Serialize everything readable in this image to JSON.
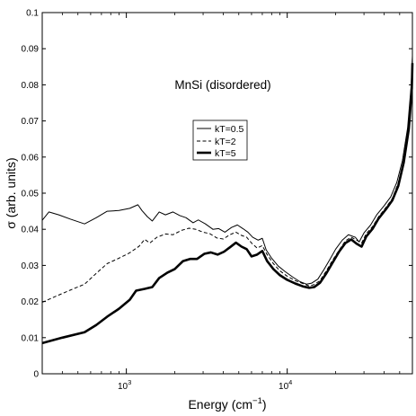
{
  "chart_data": {
    "type": "line",
    "annotation": "MnSi (disordered)",
    "xlabel_main": "Energy (cm",
    "xlabel_exp": "−1",
    "xlabel_close": ")",
    "ylabel": "σ (arb. units)",
    "x_scale": "log",
    "xlim": [
      300,
      60000
    ],
    "ylim": [
      0,
      0.1
    ],
    "grid": false,
    "legend_position": "upper-center",
    "y_ticks": [
      "0",
      "0.01",
      "0.02",
      "0.03",
      "0.04",
      "0.05",
      "0.06",
      "0.07",
      "0.08",
      "0.09",
      "0.1"
    ],
    "x_ticks": [
      {
        "value": 1000,
        "base": "10",
        "exp": "3"
      },
      {
        "value": 10000,
        "base": "10",
        "exp": "4"
      }
    ],
    "series": [
      {
        "name": "kT=0.5",
        "style": "solid-thin",
        "points": [
          [
            300,
            0.0425
          ],
          [
            330,
            0.0448
          ],
          [
            380,
            0.044
          ],
          [
            450,
            0.0428
          ],
          [
            550,
            0.0415
          ],
          [
            650,
            0.0432
          ],
          [
            760,
            0.045
          ],
          [
            900,
            0.0452
          ],
          [
            1050,
            0.0458
          ],
          [
            1180,
            0.0468
          ],
          [
            1250,
            0.0452
          ],
          [
            1350,
            0.0435
          ],
          [
            1450,
            0.0423
          ],
          [
            1600,
            0.0448
          ],
          [
            1750,
            0.044
          ],
          [
            1950,
            0.0448
          ],
          [
            2150,
            0.0438
          ],
          [
            2350,
            0.0432
          ],
          [
            2600,
            0.0418
          ],
          [
            2800,
            0.0426
          ],
          [
            3100,
            0.0415
          ],
          [
            3450,
            0.04
          ],
          [
            3750,
            0.0402
          ],
          [
            4100,
            0.0392
          ],
          [
            4500,
            0.0405
          ],
          [
            4900,
            0.0412
          ],
          [
            5300,
            0.0402
          ],
          [
            5700,
            0.0392
          ],
          [
            6100,
            0.0378
          ],
          [
            6600,
            0.037
          ],
          [
            7000,
            0.0375
          ],
          [
            7400,
            0.0343
          ],
          [
            8000,
            0.032
          ],
          [
            8800,
            0.0298
          ],
          [
            9700,
            0.0283
          ],
          [
            10800,
            0.0268
          ],
          [
            12000,
            0.0255
          ],
          [
            13200,
            0.0248
          ],
          [
            14200,
            0.0251
          ],
          [
            15500,
            0.0262
          ],
          [
            17000,
            0.029
          ],
          [
            18500,
            0.0318
          ],
          [
            20000,
            0.0345
          ],
          [
            22000,
            0.037
          ],
          [
            24000,
            0.0385
          ],
          [
            26500,
            0.0378
          ],
          [
            28000,
            0.0365
          ],
          [
            30000,
            0.039
          ],
          [
            33000,
            0.0412
          ],
          [
            36000,
            0.044
          ],
          [
            40000,
            0.0465
          ],
          [
            44000,
            0.049
          ],
          [
            48000,
            0.053
          ],
          [
            52000,
            0.059
          ],
          [
            56000,
            0.068
          ],
          [
            59000,
            0.08
          ],
          [
            60000,
            0.088
          ]
        ]
      },
      {
        "name": "kT=2",
        "style": "dashed",
        "points": [
          [
            300,
            0.0198
          ],
          [
            380,
            0.0218
          ],
          [
            450,
            0.0232
          ],
          [
            550,
            0.0248
          ],
          [
            650,
            0.0278
          ],
          [
            760,
            0.0305
          ],
          [
            900,
            0.032
          ],
          [
            1050,
            0.0335
          ],
          [
            1200,
            0.0353
          ],
          [
            1300,
            0.0372
          ],
          [
            1400,
            0.0362
          ],
          [
            1550,
            0.0378
          ],
          [
            1750,
            0.0387
          ],
          [
            1950,
            0.0385
          ],
          [
            2200,
            0.0397
          ],
          [
            2450,
            0.0403
          ],
          [
            2700,
            0.04
          ],
          [
            3000,
            0.0392
          ],
          [
            3300,
            0.0388
          ],
          [
            3650,
            0.0376
          ],
          [
            4000,
            0.0373
          ],
          [
            4400,
            0.0385
          ],
          [
            4800,
            0.0392
          ],
          [
            5200,
            0.0383
          ],
          [
            5600,
            0.0378
          ],
          [
            6000,
            0.0362
          ],
          [
            6500,
            0.0348
          ],
          [
            7000,
            0.0355
          ],
          [
            7500,
            0.033
          ],
          [
            8200,
            0.0305
          ],
          [
            9000,
            0.0285
          ],
          [
            10000,
            0.027
          ],
          [
            11200,
            0.0258
          ],
          [
            12500,
            0.025
          ],
          [
            13700,
            0.0243
          ],
          [
            14700,
            0.0247
          ],
          [
            16000,
            0.0258
          ],
          [
            17500,
            0.0285
          ],
          [
            19000,
            0.0312
          ],
          [
            21000,
            0.0342
          ],
          [
            23000,
            0.0368
          ],
          [
            25000,
            0.0378
          ],
          [
            27000,
            0.037
          ],
          [
            29000,
            0.0362
          ],
          [
            31000,
            0.0388
          ],
          [
            34000,
            0.0408
          ],
          [
            37000,
            0.0435
          ],
          [
            41000,
            0.046
          ],
          [
            45000,
            0.0485
          ],
          [
            49000,
            0.0528
          ],
          [
            53000,
            0.059
          ],
          [
            57000,
            0.0685
          ],
          [
            59500,
            0.08
          ],
          [
            60000,
            0.0875
          ]
        ]
      },
      {
        "name": "kT=5",
        "style": "solid-thick",
        "points": [
          [
            300,
            0.0085
          ],
          [
            400,
            0.01
          ],
          [
            550,
            0.0115
          ],
          [
            650,
            0.0135
          ],
          [
            760,
            0.0158
          ],
          [
            900,
            0.018
          ],
          [
            1050,
            0.0205
          ],
          [
            1150,
            0.023
          ],
          [
            1300,
            0.0235
          ],
          [
            1450,
            0.024
          ],
          [
            1600,
            0.0265
          ],
          [
            1800,
            0.028
          ],
          [
            2000,
            0.029
          ],
          [
            2250,
            0.0312
          ],
          [
            2500,
            0.0318
          ],
          [
            2750,
            0.0318
          ],
          [
            3050,
            0.0332
          ],
          [
            3350,
            0.0336
          ],
          [
            3700,
            0.033
          ],
          [
            4050,
            0.0338
          ],
          [
            4400,
            0.035
          ],
          [
            4800,
            0.0363
          ],
          [
            5200,
            0.0352
          ],
          [
            5600,
            0.0345
          ],
          [
            6000,
            0.0325
          ],
          [
            6500,
            0.033
          ],
          [
            7000,
            0.034
          ],
          [
            7500,
            0.0312
          ],
          [
            8200,
            0.029
          ],
          [
            9000,
            0.0273
          ],
          [
            10000,
            0.026
          ],
          [
            11200,
            0.025
          ],
          [
            12500,
            0.0242
          ],
          [
            13700,
            0.0238
          ],
          [
            14700,
            0.024
          ],
          [
            16000,
            0.0252
          ],
          [
            17500,
            0.0278
          ],
          [
            19000,
            0.0305
          ],
          [
            21000,
            0.0338
          ],
          [
            23000,
            0.0362
          ],
          [
            25000,
            0.0372
          ],
          [
            27000,
            0.036
          ],
          [
            29000,
            0.0352
          ],
          [
            31000,
            0.038
          ],
          [
            34000,
            0.0402
          ],
          [
            37000,
            0.043
          ],
          [
            41000,
            0.0455
          ],
          [
            45000,
            0.048
          ],
          [
            49000,
            0.052
          ],
          [
            53000,
            0.0585
          ],
          [
            57000,
            0.0678
          ],
          [
            59500,
            0.079
          ],
          [
            60000,
            0.086
          ]
        ]
      }
    ]
  }
}
